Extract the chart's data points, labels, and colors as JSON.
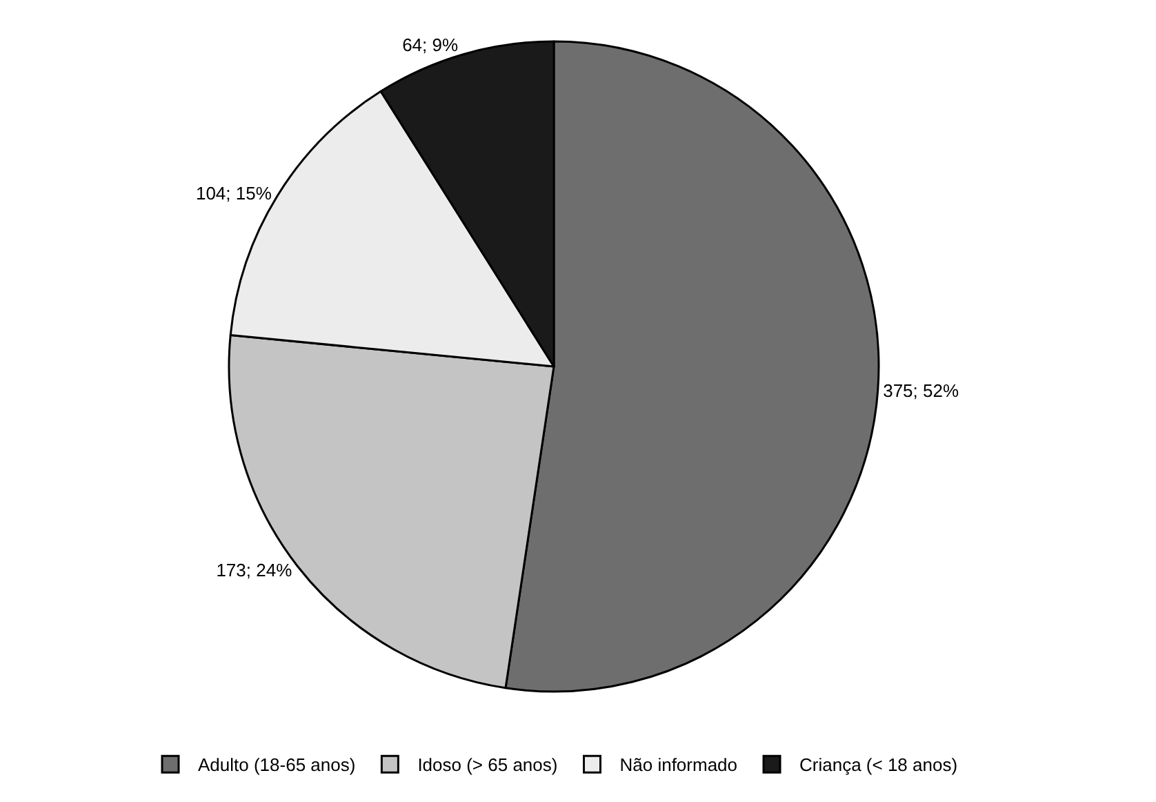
{
  "chart_data": {
    "type": "pie",
    "categories": [
      "Adulto (18-65 anos)",
      "Idoso (> 65 anos)",
      "Não informado",
      "Criança (< 18 anos)"
    ],
    "values": [
      375,
      173,
      104,
      64
    ],
    "value_labels": [
      "375; 52%",
      "173; 24%",
      "104; 15%",
      "64; 9%"
    ],
    "colors": [
      "#6e6e6e",
      "#c4c4c4",
      "#ececec",
      "#1a1a1a"
    ],
    "legend": "bottom"
  }
}
